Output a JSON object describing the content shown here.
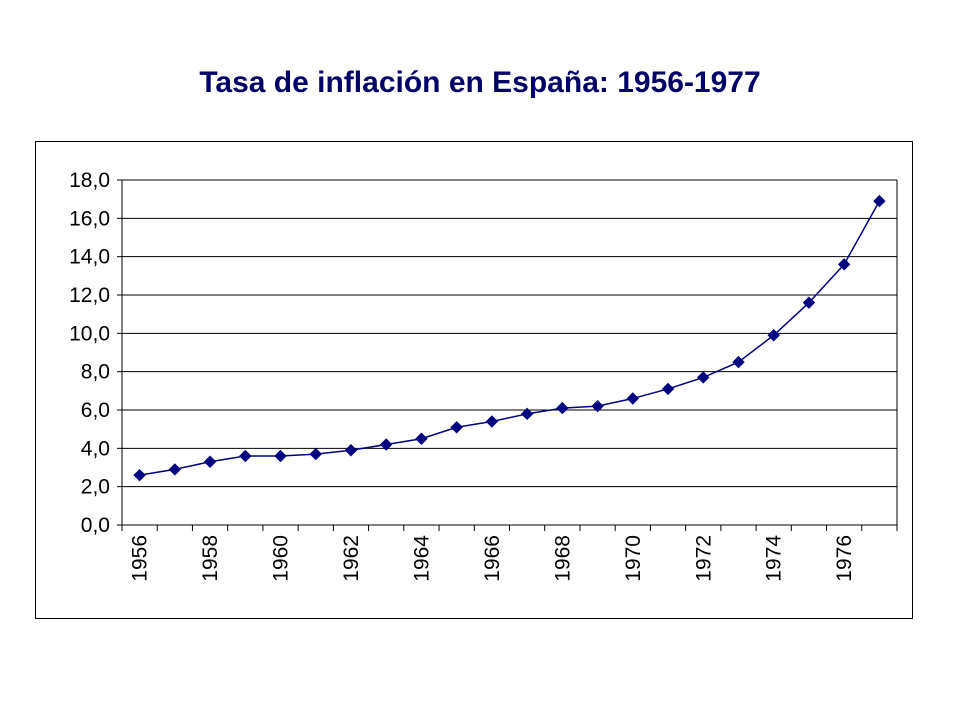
{
  "chart_data": {
    "type": "line",
    "title": "Tasa de inflación en España: 1956-1977",
    "xlabel": "",
    "ylabel": "",
    "x": [
      1956,
      1957,
      1958,
      1959,
      1960,
      1961,
      1962,
      1963,
      1964,
      1965,
      1966,
      1967,
      1968,
      1969,
      1970,
      1971,
      1972,
      1973,
      1974,
      1975,
      1976,
      1977
    ],
    "x_tick_labels": [
      "1956",
      "1958",
      "1960",
      "1962",
      "1964",
      "1966",
      "1968",
      "1970",
      "1972",
      "1974",
      "1976"
    ],
    "y_tick_labels": [
      "0,0",
      "2,0",
      "4,0",
      "6,0",
      "8,0",
      "10,0",
      "12,0",
      "14,0",
      "16,0",
      "18,0"
    ],
    "series": [
      {
        "values": [
          2.6,
          2.9,
          3.3,
          3.6,
          3.6,
          3.7,
          3.9,
          4.2,
          4.5,
          5.1,
          5.4,
          5.8,
          6.1,
          6.2,
          6.6,
          7.1,
          7.7,
          8.5,
          9.9,
          11.6,
          13.6,
          16.9
        ],
        "color": "#000080",
        "marker": "diamond"
      }
    ],
    "ylim": [
      0,
      18
    ],
    "y_tick_step": 2,
    "grid": true,
    "legend": "none",
    "colors": {
      "line": "#000080",
      "grid": "#000000",
      "title": "#000066"
    }
  }
}
